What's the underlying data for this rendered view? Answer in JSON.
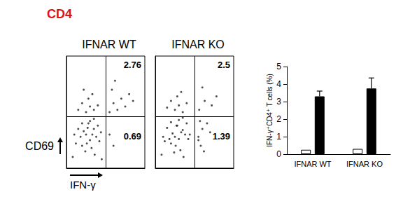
{
  "title": "CD4",
  "chart_data": [
    {
      "type": "scatter",
      "title": "IFNAR WT",
      "xlabel": "IFN-γ",
      "ylabel": "CD69",
      "x": [
        20,
        25,
        30,
        35,
        28,
        22,
        18,
        32,
        38,
        26,
        15,
        40,
        30,
        24,
        36,
        12,
        42,
        33,
        27,
        20,
        44,
        10,
        35,
        25,
        30,
        20,
        35,
        28,
        40,
        15,
        33,
        22,
        55,
        60,
        55,
        60,
        65,
        70,
        58,
        75,
        80,
        62,
        85,
        8,
        45
      ],
      "values": [
        20,
        30,
        25,
        35,
        40,
        33,
        28,
        18,
        28,
        22,
        35,
        38,
        42,
        15,
        12,
        22,
        24,
        30,
        36,
        40,
        32,
        30,
        44,
        50,
        55,
        58,
        52,
        62,
        56,
        52,
        66,
        70,
        30,
        20,
        50,
        58,
        52,
        62,
        70,
        55,
        66,
        78,
        60,
        10,
        8
      ],
      "xlim": [
        0,
        100
      ],
      "ylim": [
        0,
        100
      ],
      "tick_labels": false,
      "gates": {
        "x": 50,
        "y": 46
      },
      "quadrant_values": {
        "upper_right": 2.76,
        "lower_right": 0.69
      },
      "color": "#222222",
      "marker": "circle"
    },
    {
      "type": "scatter",
      "title": "IFNAR KO",
      "x": [
        20,
        25,
        30,
        35,
        28,
        22,
        18,
        32,
        38,
        26,
        15,
        40,
        30,
        24,
        36,
        12,
        42,
        33,
        27,
        20,
        44,
        10,
        35,
        25,
        30,
        20,
        35,
        28,
        40,
        15,
        33,
        55,
        60,
        55,
        58,
        62,
        66,
        57,
        70,
        56,
        63,
        72,
        60,
        78,
        8
      ],
      "values": [
        22,
        28,
        26,
        34,
        38,
        31,
        26,
        16,
        30,
        20,
        36,
        40,
        43,
        14,
        10,
        24,
        26,
        32,
        38,
        41,
        30,
        28,
        45,
        52,
        56,
        60,
        50,
        64,
        58,
        54,
        68,
        25,
        35,
        28,
        20,
        15,
        40,
        42,
        32,
        52,
        60,
        56,
        72,
        64,
        12
      ],
      "xlim": [
        0,
        100
      ],
      "ylim": [
        0,
        100
      ],
      "tick_labels": false,
      "gates": {
        "x": 50,
        "y": 46
      },
      "quadrant_values": {
        "upper_right": 2.5,
        "lower_right": 1.39
      },
      "color": "#222222",
      "marker": "circle"
    },
    {
      "type": "bar",
      "categories": [
        "IFNAR WT",
        "IFNAR KO"
      ],
      "series": [
        {
          "color": "#ffffff",
          "values": [
            0.25,
            0.3
          ]
        },
        {
          "color": "#000000",
          "values": [
            3.3,
            3.75
          ],
          "errors": [
            0.3,
            0.6
          ]
        }
      ],
      "ylim": [
        0,
        5
      ],
      "yticks": [
        0,
        1,
        2,
        3,
        4,
        5
      ],
      "ylabel": "IFN-γ⁺CD4⁺ T cells (%)"
    }
  ]
}
